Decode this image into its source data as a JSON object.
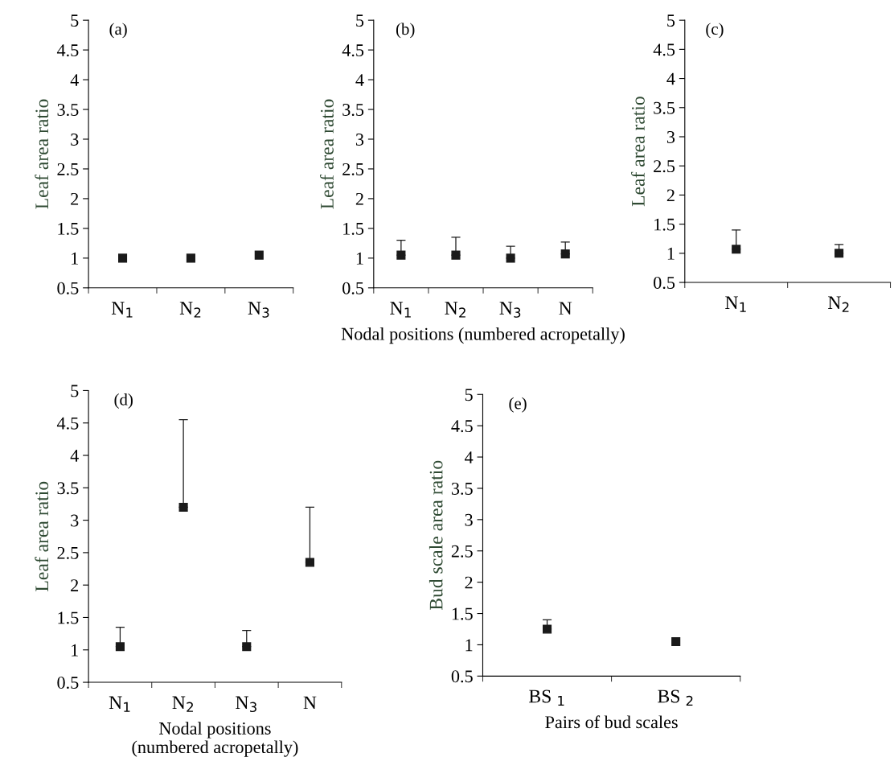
{
  "chart_data": [
    {
      "type": "scatter",
      "title": "(a)",
      "ylabel": "Leaf area ratio",
      "categories": [
        "N$_{1}$",
        "N$_{2}$",
        "N$_{3}$"
      ],
      "values": [
        1.0,
        1.0,
        1.05
      ],
      "color": "#1a1a1a",
      "marker": "square",
      "ylim": [
        0.5,
        5
      ],
      "yticks": [
        0.5,
        1,
        1.5,
        2,
        2.5,
        3,
        3.5,
        4,
        4.5,
        5
      ],
      "grid": false,
      "legend": false
    },
    {
      "type": "scatter",
      "title": "(b)",
      "ylabel": "Leaf area ratio",
      "xlabel": "Nodal positions (numbered acropetally)",
      "categories": [
        "N$_{1}$",
        "N$_{2}$",
        "N$_{3}$",
        "N"
      ],
      "values": [
        1.05,
        1.05,
        1.0,
        1.07
      ],
      "errors": [
        [
          1.05,
          1.3
        ],
        [
          1.05,
          1.35
        ],
        [
          1.0,
          1.2
        ],
        [
          1.07,
          1.27
        ]
      ],
      "color": "#1a1a1a",
      "marker": "square",
      "ylim": [
        0.5,
        5
      ],
      "yticks": [
        0.5,
        1,
        1.5,
        2,
        2.5,
        3,
        3.5,
        4,
        4.5,
        5
      ],
      "grid": false,
      "legend": false
    },
    {
      "type": "scatter",
      "title": "(c)",
      "ylabel": "Leaf area ratio",
      "categories": [
        "N$_{1}$",
        "N$_{2}$"
      ],
      "values": [
        1.07,
        1.0
      ],
      "errors": [
        [
          1.07,
          1.4
        ],
        [
          1.0,
          1.15
        ]
      ],
      "color": "#1a1a1a",
      "marker": "square",
      "ylim": [
        0.5,
        5
      ],
      "yticks": [
        0.5,
        1,
        1.5,
        2,
        2.5,
        3,
        3.5,
        4,
        4.5,
        5
      ],
      "grid": false,
      "legend": false
    },
    {
      "type": "scatter",
      "title": "(d)",
      "ylabel": "Leaf area ratio",
      "xlabel": "Nodal positions\n(numbered acropetally)",
      "categories": [
        "N$_{1}$",
        "N$_{2}$",
        "N$_{3}$",
        "N"
      ],
      "values": [
        1.05,
        3.2,
        1.05,
        2.35
      ],
      "errors": [
        [
          1.05,
          1.35
        ],
        [
          3.2,
          4.55
        ],
        [
          1.05,
          1.3
        ],
        [
          2.35,
          3.2
        ]
      ],
      "color": "#1a1a1a",
      "marker": "square",
      "ylim": [
        0.5,
        5
      ],
      "yticks": [
        0.5,
        1,
        1.5,
        2,
        2.5,
        3,
        3.5,
        4,
        4.5,
        5
      ],
      "grid": false,
      "legend": false
    },
    {
      "type": "scatter",
      "title": "(e)",
      "ylabel": "Bud scale area ratio",
      "xlabel": "Pairs of bud scales",
      "categories": [
        "BS $_{1}$",
        "BS $_{2}$"
      ],
      "values": [
        1.25,
        1.05
      ],
      "errors": [
        [
          1.25,
          1.4
        ],
        null
      ],
      "color": "#1a1a1a",
      "marker": "square",
      "ylim": [
        0.5,
        5
      ],
      "yticks": [
        0.5,
        1,
        1.5,
        2,
        2.5,
        3,
        3.5,
        4,
        4.5,
        5
      ],
      "grid": false,
      "legend": false
    }
  ]
}
